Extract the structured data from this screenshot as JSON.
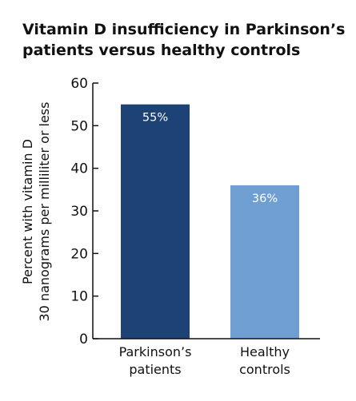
{
  "chart_data": {
    "type": "bar",
    "title_lines": [
      "Vitamin D insufficiency in Parkinson’s",
      "patients versus healthy controls"
    ],
    "ylabel_lines": [
      "Percent with vitamin D",
      "30 nanograms per milliliter or less"
    ],
    "xlabel": "",
    "ylim": [
      0,
      60
    ],
    "yticks": [
      0,
      10,
      20,
      30,
      40,
      50,
      60
    ],
    "categories": [
      {
        "lines": [
          "Parkinson’s",
          "patients"
        ]
      },
      {
        "lines": [
          "Healthy",
          "controls"
        ]
      }
    ],
    "values": [
      55,
      36
    ],
    "data_labels": [
      "55%",
      "36%"
    ],
    "colors": [
      "#1d4275",
      "#6f9fd2"
    ],
    "grid": false,
    "legend": "none"
  }
}
